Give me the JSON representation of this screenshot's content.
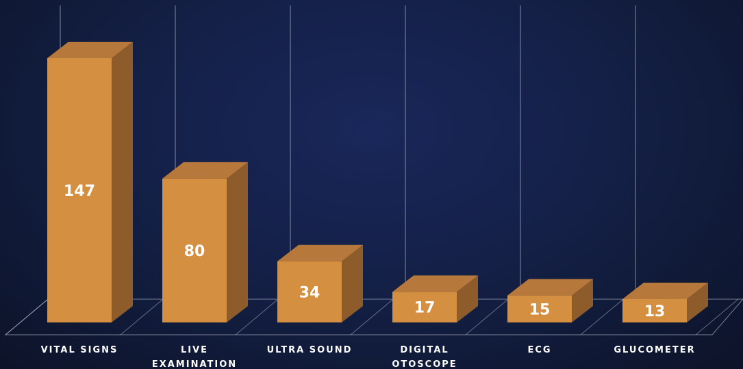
{
  "chart_data": {
    "type": "bar",
    "title": "",
    "xlabel": "",
    "ylabel": "",
    "categories": [
      "VITAL SIGNS",
      "LIVE EXAMINATION",
      "ULTRA SOUND",
      "DIGITAL OTOSCOPE",
      "ECG",
      "GLUCOMETER"
    ],
    "category_lines": [
      [
        "VITAL SIGNS"
      ],
      [
        "LIVE",
        "EXAMINATION"
      ],
      [
        "ULTRA SOUND"
      ],
      [
        "DIGITAL",
        "OTOSCOPE"
      ],
      [
        "ECG"
      ],
      [
        "GLUCOMETER"
      ]
    ],
    "values": [
      147,
      80,
      34,
      17,
      15,
      13
    ],
    "ylim": [
      0,
      160
    ],
    "three_d": true,
    "grid": true,
    "legend": "none",
    "colors": {
      "bar_front": "#d58f41",
      "bar_side": "#8d5c2a",
      "bar_top": "#b7793b",
      "grid": "#cfd4e3",
      "label_text": "#ffffff"
    }
  }
}
